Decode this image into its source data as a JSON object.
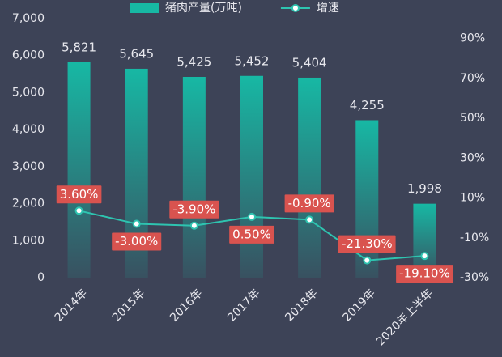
{
  "chart_data": {
    "type": "bar",
    "categories": [
      "2014年",
      "2015年",
      "2016年",
      "2017年",
      "2018年",
      "2019年",
      "2020年上半年"
    ],
    "series": [
      {
        "name": "猪肉产量(万吨)",
        "type": "bar",
        "color": "#17b8a4",
        "values": [
          5821,
          5645,
          5425,
          5452,
          5404,
          4255,
          1998
        ],
        "value_labels": [
          "5,821",
          "5,645",
          "5,425",
          "5,452",
          "5,404",
          "4,255",
          "1,998"
        ]
      },
      {
        "name": "增速",
        "type": "line",
        "axis": "y2",
        "color": "#2ec4b0",
        "values": [
          3.6,
          -3.0,
          -3.9,
          0.5,
          -0.9,
          -21.3,
          -19.1
        ],
        "value_labels": [
          "3.60%",
          "-3.00%",
          "-3.90%",
          "0.50%",
          "-0.90%",
          "-21.30%",
          "-19.10%"
        ]
      }
    ],
    "ylim": [
      0,
      7000
    ],
    "yticks": [
      {
        "value": 0,
        "label": "0"
      },
      {
        "value": 1000,
        "label": "1,000"
      },
      {
        "value": 2000,
        "label": "2,000"
      },
      {
        "value": 3000,
        "label": "3,000"
      },
      {
        "value": 4000,
        "label": "4,000"
      },
      {
        "value": 5000,
        "label": "5,000"
      },
      {
        "value": 6000,
        "label": "6,000"
      },
      {
        "value": 7000,
        "label": "7,000"
      }
    ],
    "y2lim": [
      -30,
      100
    ],
    "y2ticks": [
      {
        "value": -30,
        "label": "-30%"
      },
      {
        "value": -10,
        "label": "-10%"
      },
      {
        "value": 10,
        "label": "10%"
      },
      {
        "value": 30,
        "label": "30%"
      },
      {
        "value": 50,
        "label": "50%"
      },
      {
        "value": 70,
        "label": "70%"
      },
      {
        "value": 90,
        "label": "90%"
      }
    ],
    "legend": "top"
  }
}
